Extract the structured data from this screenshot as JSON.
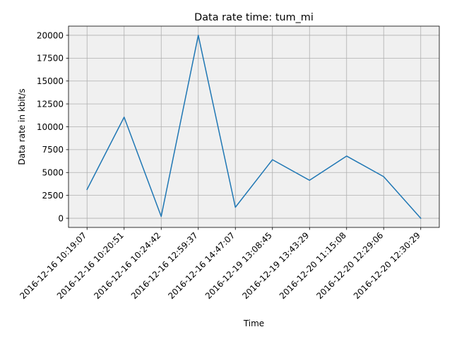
{
  "chart_data": {
    "type": "line",
    "title": "Data rate time: tum_mi",
    "xlabel": "Time",
    "ylabel": "Data rate in kbit/s",
    "categories": [
      "2016-12-16 10:19:07",
      "2016-12-16 10:20:51",
      "2016-12-16 10:24:42",
      "2016-12-16 12:59:37",
      "2016-12-16 14:47:07",
      "2016-12-19 13:08:45",
      "2016-12-19 13:43:29",
      "2016-12-20 11:15:08",
      "2016-12-20 12:29:06",
      "2016-12-20 12:30:29"
    ],
    "series": [
      {
        "values": [
          3150,
          11050,
          200,
          20000,
          1200,
          6400,
          4150,
          6800,
          4550,
          0
        ],
        "color": "#1f77b4"
      }
    ],
    "ylim": [
      -1000,
      21000
    ],
    "yticks": [
      0,
      2500,
      5000,
      7500,
      10000,
      12500,
      15000,
      17500,
      20000
    ],
    "grid": true,
    "plot_background": "#f0f0f0"
  }
}
